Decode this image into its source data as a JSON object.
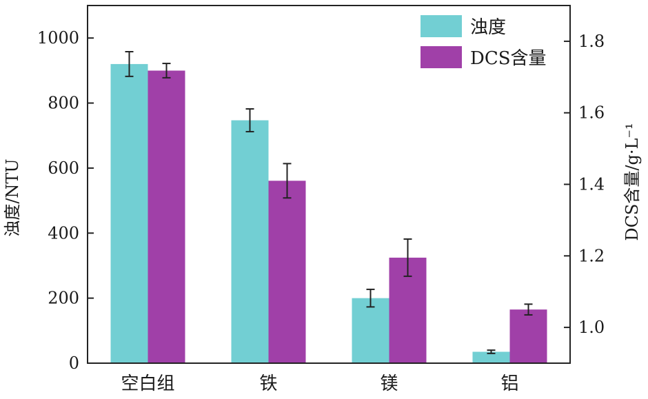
{
  "chart_data": {
    "type": "bar",
    "categories": [
      "空白组",
      "铁",
      "镁",
      "铝"
    ],
    "series": [
      {
        "name": "浊度",
        "axis": "left",
        "color": "#72CFD3",
        "values": [
          920,
          747,
          200,
          35
        ],
        "errors": [
          38,
          35,
          27,
          5
        ]
      },
      {
        "name": "DCS含量",
        "axis": "right",
        "color": "#A040A8",
        "values": [
          1.718,
          1.41,
          1.195,
          1.05
        ],
        "errors": [
          0.02,
          0.048,
          0.052,
          0.015
        ]
      }
    ],
    "left_axis": {
      "label": "浊度/NTU",
      "ylim": [
        0,
        1100
      ],
      "ticks": [
        0,
        200,
        400,
        600,
        800,
        1000
      ],
      "tick_labels": [
        "0",
        "200",
        "400",
        "600",
        "800",
        "1000"
      ]
    },
    "right_axis": {
      "label": "DCS含量/g·L⁻¹",
      "ylim": [
        0.9,
        1.9
      ],
      "ticks": [
        1.0,
        1.2,
        1.4,
        1.6,
        1.8
      ],
      "tick_labels": [
        "1.0",
        "1.2",
        "1.4",
        "1.6",
        "1.8"
      ]
    },
    "legend": {
      "position": "top-right",
      "entries": [
        "浊度",
        "DCS含量"
      ]
    },
    "grid": false
  }
}
